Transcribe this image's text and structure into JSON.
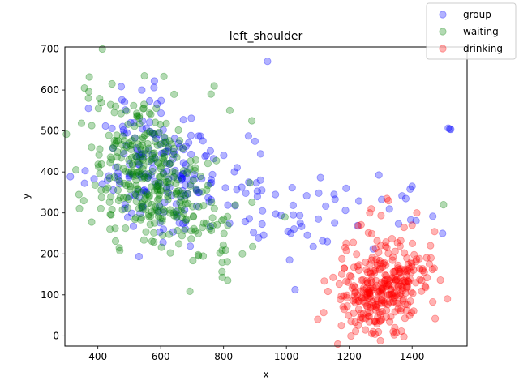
{
  "chart_data": {
    "type": "scatter",
    "title": "left_shoulder",
    "xlabel": "x",
    "ylabel": "y",
    "xlim": [
      295,
      1575
    ],
    "ylim": [
      -25,
      705
    ],
    "xticks": [
      400,
      600,
      800,
      1000,
      1200,
      1400
    ],
    "yticks": [
      0,
      100,
      200,
      300,
      400,
      500,
      600,
      700
    ],
    "grid": false,
    "legend_position": "top-right",
    "series": [
      {
        "name": "group",
        "color": "#0000ff",
        "opacity": 0.3,
        "clusters": [
          {
            "cx": 560,
            "cy": 420,
            "sx": 90,
            "sy": 80,
            "n": 130
          },
          {
            "cx": 700,
            "cy": 360,
            "sx": 70,
            "sy": 70,
            "n": 45
          },
          {
            "cx": 860,
            "cy": 360,
            "sx": 60,
            "sy": 60,
            "n": 25
          },
          {
            "cx": 1040,
            "cy": 290,
            "sx": 80,
            "sy": 55,
            "n": 25
          },
          {
            "cx": 1330,
            "cy": 290,
            "sx": 60,
            "sy": 45,
            "n": 12
          }
        ],
        "points": [
          [
            940,
            670
          ],
          [
            1515,
            507
          ],
          [
            1520,
            505
          ],
          [
            1523,
            504
          ],
          [
            1497,
            250
          ],
          [
            1400,
            365
          ],
          [
            1380,
            335
          ],
          [
            1130,
            230
          ],
          [
            1115,
            232
          ],
          [
            1005,
            255
          ],
          [
            1010,
            185
          ],
          [
            965,
            345
          ],
          [
            880,
            375
          ],
          [
            900,
            475
          ],
          [
            370,
            555
          ],
          [
            580,
            622
          ],
          [
            540,
            600
          ],
          [
            1190,
            360
          ]
        ]
      },
      {
        "name": "waiting",
        "color": "#008000",
        "opacity": 0.3,
        "clusters": [
          {
            "cx": 530,
            "cy": 410,
            "sx": 75,
            "sy": 90,
            "n": 230
          },
          {
            "cx": 640,
            "cy": 330,
            "sx": 75,
            "sy": 60,
            "n": 90
          },
          {
            "cx": 780,
            "cy": 250,
            "sx": 45,
            "sy": 60,
            "n": 30
          }
        ],
        "points": [
          [
            330,
            405
          ],
          [
            340,
            345
          ],
          [
            355,
            330
          ],
          [
            370,
            580
          ],
          [
            380,
            460
          ],
          [
            445,
            615
          ],
          [
            770,
            610
          ],
          [
            800,
            285
          ],
          [
            890,
            525
          ],
          [
            995,
            290
          ],
          [
            1500,
            320
          ],
          [
            720,
            195
          ],
          [
            820,
            550
          ],
          [
            860,
            200
          ],
          [
            760,
            590
          ]
        ]
      },
      {
        "name": "drinking",
        "color": "#ff0000",
        "opacity": 0.3,
        "clusters": [
          {
            "cx": 1290,
            "cy": 95,
            "sx": 45,
            "sy": 40,
            "n": 170
          },
          {
            "cx": 1390,
            "cy": 130,
            "sx": 45,
            "sy": 40,
            "n": 75
          },
          {
            "cx": 1190,
            "cy": 110,
            "sx": 50,
            "sy": 55,
            "n": 40
          },
          {
            "cx": 1310,
            "cy": 210,
            "sx": 70,
            "sy": 50,
            "n": 35
          }
        ],
        "points": [
          [
            1265,
            300
          ],
          [
            1270,
            310
          ],
          [
            1320,
            335
          ],
          [
            1325,
            330
          ],
          [
            1345,
            20
          ],
          [
            1340,
            10
          ],
          [
            1350,
            8
          ],
          [
            1460,
            190
          ],
          [
            1455,
            175
          ],
          [
            1470,
            165
          ],
          [
            1175,
            25
          ],
          [
            1100,
            40
          ],
          [
            1415,
            300
          ],
          [
            1400,
            270
          ]
        ]
      }
    ]
  }
}
